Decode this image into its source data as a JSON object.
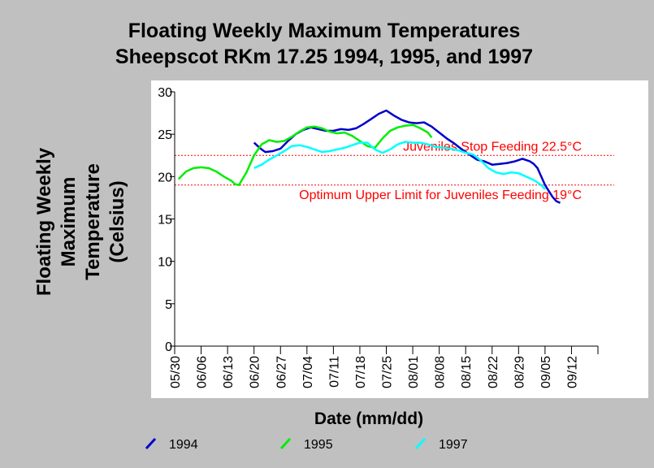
{
  "chart_data": {
    "type": "line",
    "title": "Floating Weekly Maximum Temperatures",
    "subtitle": "Sheepscot RKm 17.25 1994, 1995, and 1997",
    "ylabel_lines": [
      "Floating Weekly",
      "Maximum",
      "Temperature",
      "(Celsius)"
    ],
    "xlabel": "Date (mm/dd)",
    "ylim": [
      0,
      30
    ],
    "yticks": [
      "0",
      "5",
      "10",
      "15",
      "20",
      "25",
      "30"
    ],
    "xlim": [
      "05/30",
      "09/19"
    ],
    "xticks": [
      "05/30",
      "06/06",
      "06/13",
      "06/20",
      "06/27",
      "07/04",
      "07/11",
      "07/18",
      "07/25",
      "08/01",
      "08/08",
      "08/15",
      "08/22",
      "08/29",
      "09/05",
      "09/12"
    ],
    "grid": false,
    "legend_position": "bottom",
    "reference_lines": [
      {
        "y": 22.5,
        "label": "Juveniles Stop Feeding 22.5°C",
        "color": "#ff0000"
      },
      {
        "y": 19,
        "label": "Optimum Upper Limit for Juveniles Feeding 19°C",
        "color": "#ff0000"
      }
    ],
    "series": [
      {
        "name": "1994",
        "color": "#0000cc",
        "x": [
          "06/20",
          "06/21",
          "06/22",
          "06/23",
          "06/25",
          "06/27",
          "06/29",
          "07/01",
          "07/03",
          "07/05",
          "07/07",
          "07/09",
          "07/11",
          "07/13",
          "07/15",
          "07/17",
          "07/19",
          "07/21",
          "07/23",
          "07/25",
          "07/27",
          "07/29",
          "07/31",
          "08/02",
          "08/04",
          "08/06",
          "08/08",
          "08/10",
          "08/12",
          "08/14",
          "08/16",
          "08/18",
          "08/20",
          "08/22",
          "08/24",
          "08/26",
          "08/28",
          "08/30",
          "09/01",
          "09/02",
          "09/03",
          "09/04",
          "09/05",
          "09/06",
          "09/07",
          "09/08",
          "09/09"
        ],
        "y": [
          24.0,
          23.6,
          23.2,
          22.9,
          23.0,
          23.3,
          24.2,
          25.0,
          25.5,
          25.8,
          25.6,
          25.4,
          25.4,
          25.6,
          25.5,
          25.7,
          26.2,
          26.8,
          27.4,
          27.8,
          27.2,
          26.7,
          26.4,
          26.3,
          26.4,
          25.9,
          25.2,
          24.5,
          23.9,
          23.2,
          22.6,
          22.0,
          21.8,
          21.4,
          21.5,
          21.6,
          21.8,
          22.1,
          21.8,
          21.5,
          21.0,
          20.0,
          19.0,
          18.3,
          17.6,
          17.1,
          16.9
        ]
      },
      {
        "name": "1995",
        "color": "#00ee00",
        "x": [
          "05/31",
          "06/02",
          "06/04",
          "06/06",
          "06/08",
          "06/10",
          "06/12",
          "06/14",
          "06/15",
          "06/16",
          "06/18",
          "06/20",
          "06/22",
          "06/24",
          "06/26",
          "06/28",
          "06/30",
          "07/02",
          "07/04",
          "07/06",
          "07/08",
          "07/10",
          "07/12",
          "07/14",
          "07/16",
          "07/18",
          "07/20",
          "07/22",
          "07/24",
          "07/26",
          "07/28",
          "07/30",
          "08/01",
          "08/03",
          "08/05",
          "08/06"
        ],
        "y": [
          19.7,
          20.6,
          21.0,
          21.1,
          21.0,
          20.6,
          20.0,
          19.5,
          19.1,
          19.0,
          20.5,
          22.5,
          23.8,
          24.3,
          24.1,
          24.2,
          24.7,
          25.3,
          25.8,
          25.9,
          25.7,
          25.3,
          25.1,
          25.2,
          24.8,
          24.2,
          23.6,
          23.4,
          24.5,
          25.4,
          25.8,
          26.0,
          26.1,
          25.7,
          25.2,
          24.6
        ]
      },
      {
        "name": "1997",
        "color": "#00ffff",
        "x": [
          "06/20",
          "06/22",
          "06/24",
          "06/26",
          "06/28",
          "06/30",
          "07/02",
          "07/04",
          "07/06",
          "07/08",
          "07/10",
          "07/12",
          "07/14",
          "07/16",
          "07/18",
          "07/20",
          "07/22",
          "07/24",
          "07/26",
          "07/28",
          "07/30",
          "08/01",
          "08/03",
          "08/05",
          "08/07",
          "08/09",
          "08/11",
          "08/13",
          "08/15",
          "08/17",
          "08/19",
          "08/21",
          "08/23",
          "08/25",
          "08/27",
          "08/29",
          "08/31",
          "09/02",
          "09/04",
          "09/05"
        ],
        "y": [
          21.0,
          21.4,
          22.0,
          22.5,
          23.0,
          23.6,
          23.7,
          23.5,
          23.2,
          22.9,
          23.0,
          23.2,
          23.4,
          23.7,
          24.0,
          24.0,
          23.2,
          22.8,
          23.2,
          23.8,
          24.1,
          24.0,
          24.0,
          23.8,
          23.5,
          23.4,
          23.3,
          23.1,
          22.8,
          22.6,
          21.9,
          21.0,
          20.5,
          20.3,
          20.5,
          20.4,
          20.0,
          19.6,
          19.0,
          18.5
        ]
      }
    ]
  }
}
